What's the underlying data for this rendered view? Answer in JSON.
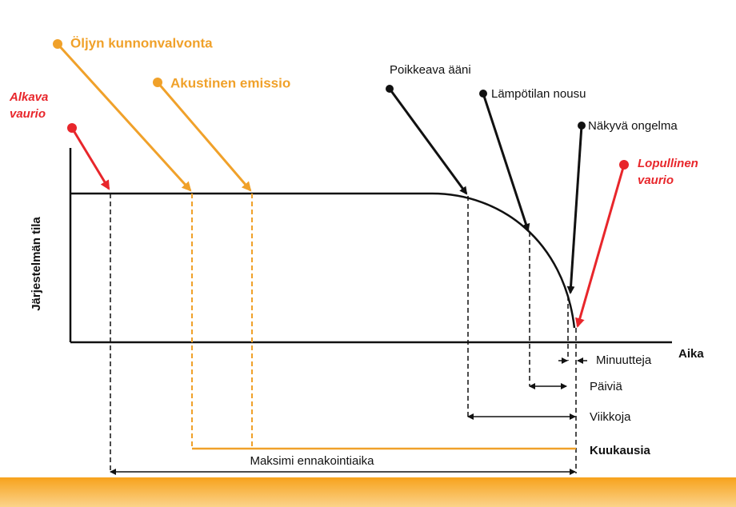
{
  "axes": {
    "y_label": "Järjestelmän tila",
    "x_label": "Aika"
  },
  "events": [
    {
      "lines": [
        "Alkava",
        "vaurio"
      ]
    },
    {
      "lines": [
        "Öljyn kunnonvalvonta"
      ]
    },
    {
      "lines": [
        "Akustinen emissio"
      ]
    },
    {
      "lines": [
        "Poikkeava ääni"
      ]
    },
    {
      "lines": [
        "Lämpötilan nousu"
      ]
    },
    {
      "lines": [
        "Näkyvä ongelma"
      ]
    },
    {
      "lines": [
        "Lopullinen",
        "vaurio"
      ]
    }
  ],
  "intervals": [
    "Minuutteja",
    "Päiviä",
    "Viikkoja",
    "Kuukausia",
    "Maksimi ennakointiaika"
  ]
}
